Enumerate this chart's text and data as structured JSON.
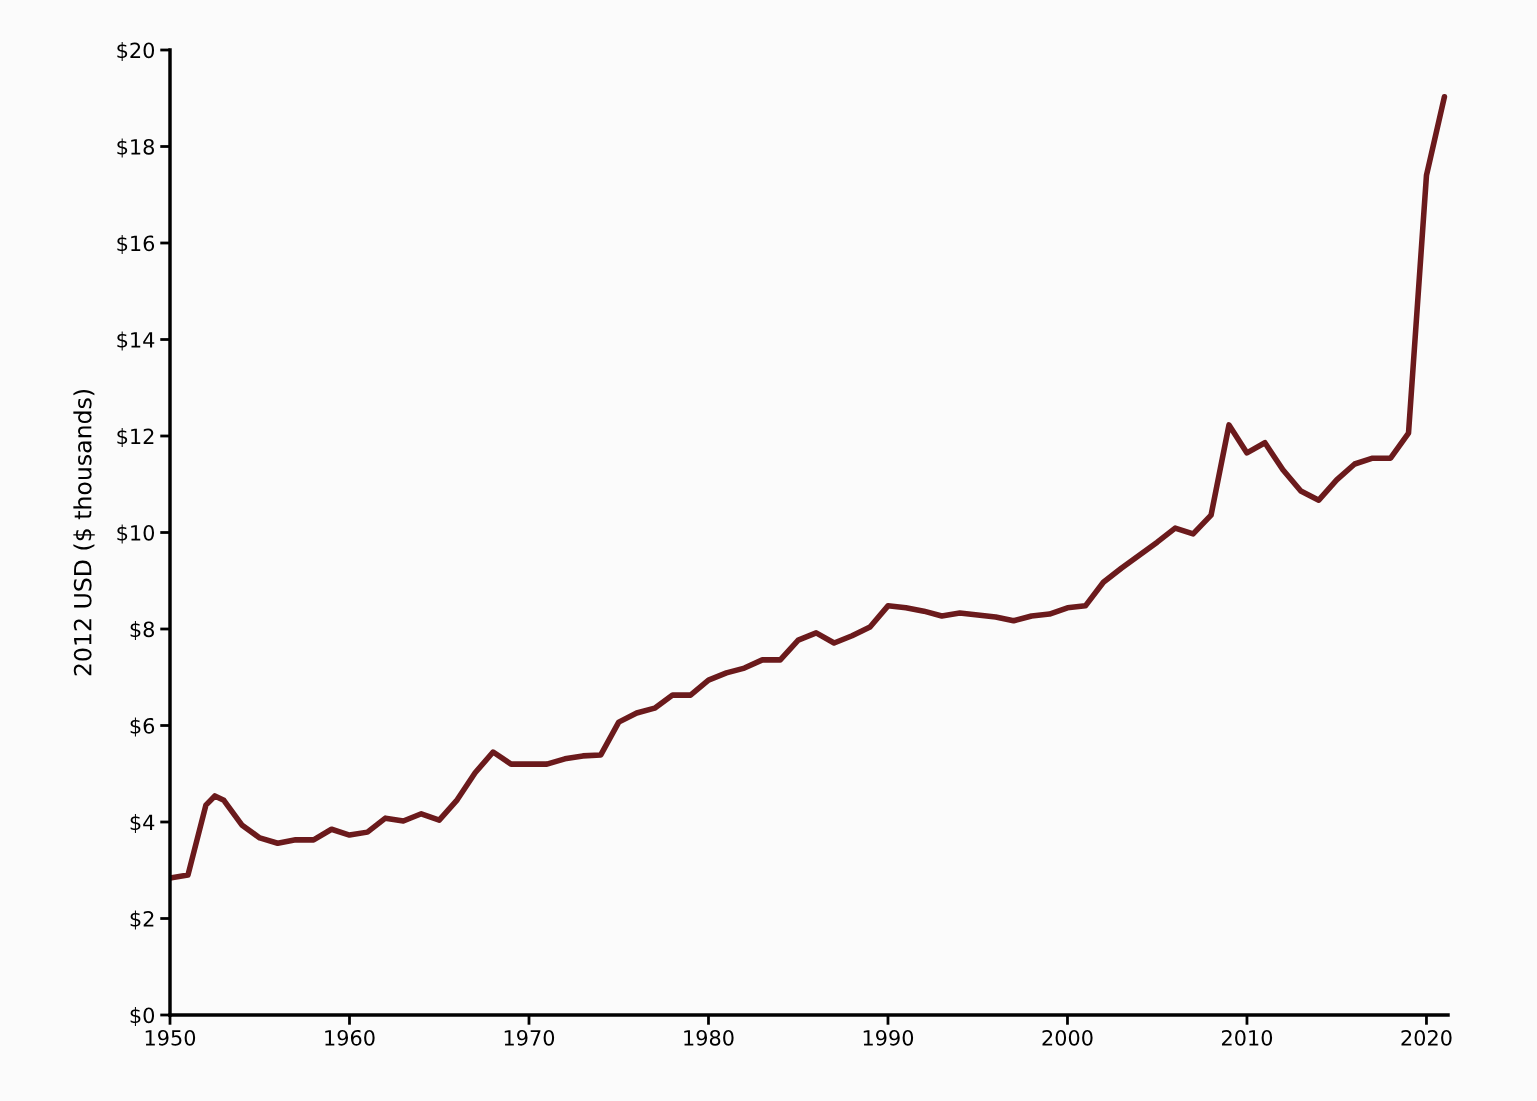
{
  "chart_data": {
    "type": "line",
    "ylabel": "2012 USD ($ thousands)",
    "x": [
      1950,
      1951,
      1952,
      1952.5,
      1953,
      1954,
      1955,
      1956,
      1957,
      1958,
      1959,
      1960,
      1961,
      1962,
      1963,
      1964,
      1965,
      1966,
      1967,
      1968,
      1969,
      1970,
      1971,
      1972,
      1973,
      1974,
      1975,
      1976,
      1977,
      1978,
      1979,
      1980,
      1981,
      1982,
      1983,
      1984,
      1985,
      1986,
      1987,
      1988,
      1989,
      1990,
      1991,
      1992,
      1993,
      1994,
      1995,
      1996,
      1997,
      1998,
      1999,
      2000,
      2001,
      2002,
      2003,
      2004,
      2005,
      2006,
      2007,
      2008,
      2009,
      2010,
      2011,
      2012,
      2013,
      2014,
      2015,
      2016,
      2017,
      2018,
      2019,
      2020,
      2021
    ],
    "series": [
      {
        "color": "#6b1a1c",
        "values": [
          2.84,
          2.9,
          4.35,
          4.54,
          4.45,
          3.94,
          3.67,
          3.56,
          3.63,
          3.63,
          3.85,
          3.73,
          3.79,
          4.08,
          4.02,
          4.17,
          4.04,
          4.46,
          5.02,
          5.45,
          5.2,
          5.2,
          5.2,
          5.31,
          5.37,
          5.39,
          6.07,
          6.26,
          6.36,
          6.63,
          6.63,
          6.94,
          7.09,
          7.19,
          7.36,
          7.36,
          7.77,
          7.92,
          7.71,
          7.86,
          8.04,
          8.48,
          8.44,
          8.37,
          8.27,
          8.33,
          8.29,
          8.25,
          8.17,
          8.27,
          8.31,
          8.44,
          8.48,
          8.97,
          9.26,
          9.53,
          9.8,
          10.09,
          9.97,
          10.36,
          12.23,
          11.65,
          11.86,
          11.3,
          10.86,
          10.67,
          11.09,
          11.42,
          11.54,
          11.54,
          12.06,
          17.4,
          19.03
        ]
      }
    ],
    "xlim": [
      1950,
      2021.2
    ],
    "xticks": [
      1950,
      1960,
      1970,
      1980,
      1990,
      2000,
      2010,
      2020
    ],
    "ylim": [
      0,
      20
    ],
    "yticks": [
      {
        "value": 0,
        "label": "$0"
      },
      {
        "value": 2,
        "label": "$2"
      },
      {
        "value": 4,
        "label": "$4"
      },
      {
        "value": 6,
        "label": "$6"
      },
      {
        "value": 8,
        "label": "$8"
      },
      {
        "value": 10,
        "label": "$10"
      },
      {
        "value": 12,
        "label": "$12"
      },
      {
        "value": 14,
        "label": "$14"
      },
      {
        "value": 16,
        "label": "$16"
      },
      {
        "value": 18,
        "label": "$18"
      },
      {
        "value": 20,
        "label": "$20"
      }
    ],
    "line_style": "solid"
  }
}
